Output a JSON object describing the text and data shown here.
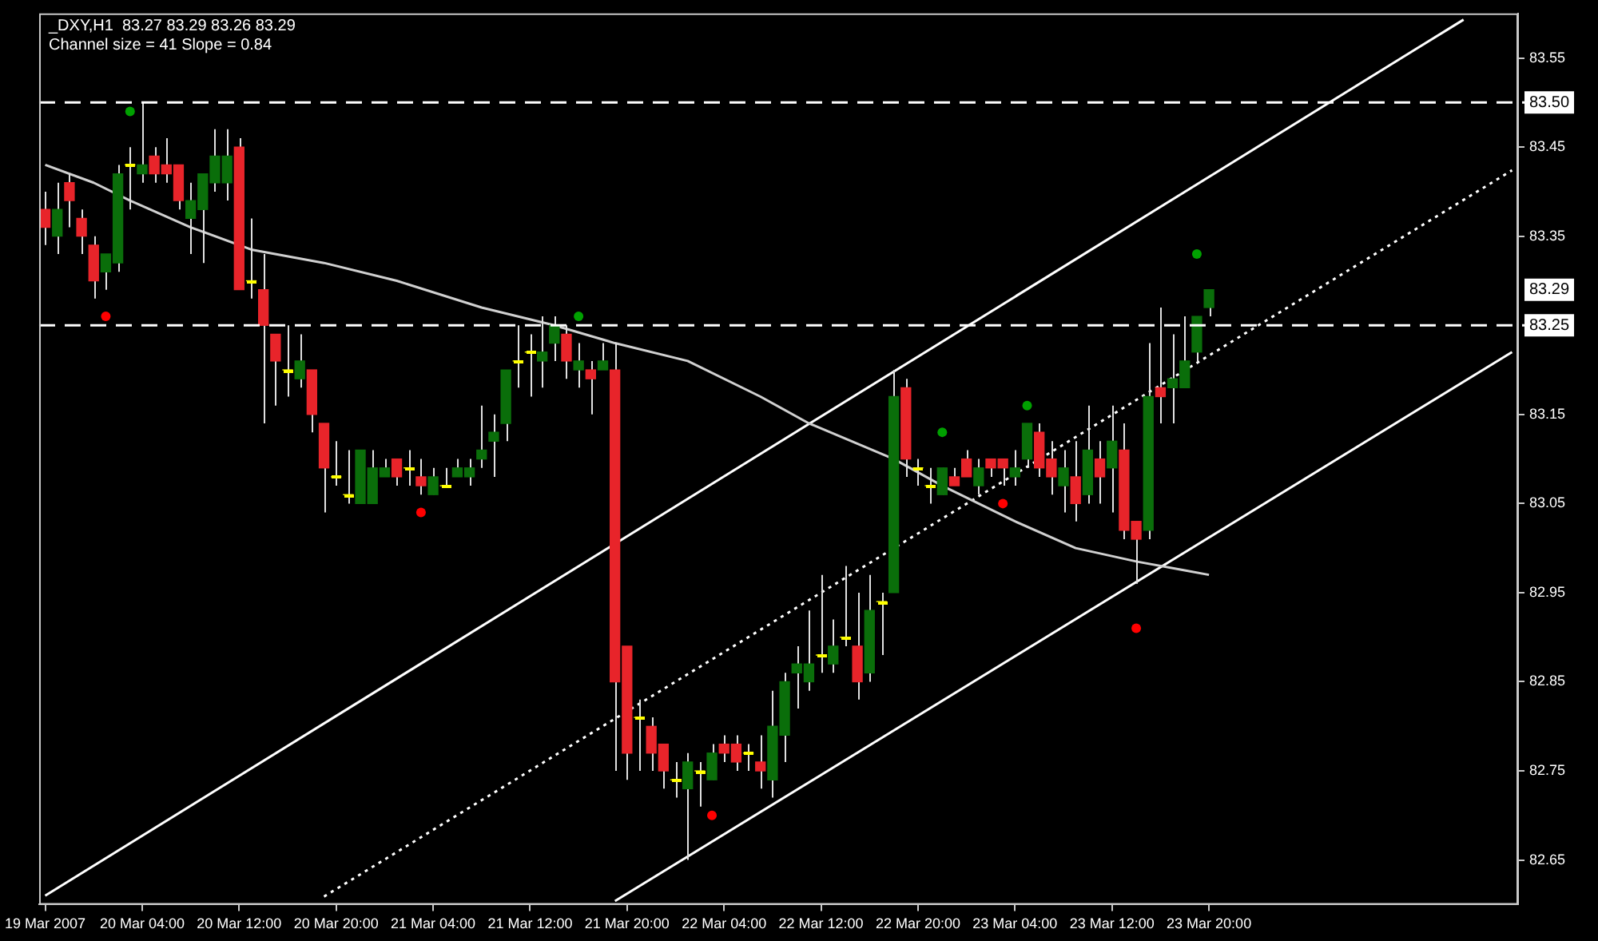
{
  "chart_data": {
    "type": "candlestick",
    "title": "_DXY,H1  83.27 83.29 83.26 83.29",
    "subtitle": "Channel size = 41 Slope = 0.84",
    "categories": [
      "19 Mar 2007",
      null,
      null,
      null,
      null,
      null,
      null,
      null,
      "20 Mar 04:00",
      null,
      null,
      null,
      null,
      null,
      null,
      null,
      "20 Mar 12:00",
      null,
      null,
      null,
      null,
      null,
      null,
      null,
      "20 Mar 20:00",
      null,
      null,
      null,
      null,
      null,
      null,
      null,
      "21 Mar 04:00",
      null,
      null,
      null,
      null,
      null,
      null,
      null,
      "21 Mar 12:00",
      null,
      null,
      null,
      null,
      null,
      null,
      null,
      "21 Mar 20:00",
      null,
      null,
      null,
      null,
      null,
      null,
      null,
      "22 Mar 04:00",
      null,
      null,
      null,
      null,
      null,
      null,
      null,
      "22 Mar 12:00",
      null,
      null,
      null,
      null,
      null,
      null,
      null,
      "22 Mar 20:00",
      null,
      null,
      null,
      null,
      null,
      null,
      null,
      "23 Mar 04:00",
      null,
      null,
      null,
      null,
      null,
      null,
      null,
      "23 Mar 12:00",
      null,
      null,
      null,
      null,
      null,
      null,
      null,
      "23 Mar 20:00",
      null,
      null,
      null,
      null,
      null,
      null,
      null,
      null,
      null,
      null,
      null,
      null,
      null,
      null,
      null,
      null,
      null,
      null,
      null,
      null,
      null,
      null,
      null,
      null,
      null
    ],
    "ylim": [
      82.6,
      83.6
    ],
    "yticks": [
      82.65,
      82.75,
      82.85,
      82.95,
      83.05,
      83.15,
      83.35,
      83.45,
      83.55
    ],
    "series": [
      {
        "ohlc": [
          [
            83.38,
            83.4,
            83.34,
            83.36
          ],
          [
            83.35,
            83.41,
            83.33,
            83.38
          ],
          [
            83.41,
            83.42,
            83.36,
            83.39
          ],
          [
            83.37,
            83.38,
            83.33,
            83.35
          ],
          [
            83.34,
            83.35,
            83.28,
            83.3
          ],
          [
            83.31,
            83.33,
            83.29,
            83.33
          ],
          [
            83.32,
            83.43,
            83.31,
            83.42
          ],
          [
            83.43,
            83.45,
            83.38,
            83.43
          ],
          [
            83.42,
            83.5,
            83.41,
            83.43
          ],
          [
            83.44,
            83.45,
            83.41,
            83.42
          ],
          [
            83.43,
            83.46,
            83.41,
            83.42
          ],
          [
            83.43,
            83.43,
            83.38,
            83.39
          ],
          [
            83.37,
            83.41,
            83.33,
            83.39
          ],
          [
            83.38,
            83.42,
            83.32,
            83.42
          ],
          [
            83.41,
            83.47,
            83.4,
            83.44
          ],
          [
            83.41,
            83.47,
            83.39,
            83.44
          ],
          [
            83.45,
            83.46,
            83.29,
            83.29
          ],
          [
            83.3,
            83.37,
            83.28,
            83.3
          ],
          [
            83.29,
            83.33,
            83.14,
            83.25
          ],
          [
            83.24,
            83.24,
            83.16,
            83.21
          ],
          [
            83.2,
            83.25,
            83.17,
            83.2
          ],
          [
            83.19,
            83.24,
            83.18,
            83.21
          ],
          [
            83.2,
            83.2,
            83.13,
            83.15
          ],
          [
            83.14,
            83.14,
            83.04,
            83.09
          ],
          [
            83.08,
            83.12,
            83.07,
            83.08
          ],
          [
            83.06,
            83.11,
            83.05,
            83.06
          ],
          [
            83.05,
            83.11,
            83.05,
            83.11
          ],
          [
            83.05,
            83.11,
            83.05,
            83.09
          ],
          [
            83.08,
            83.1,
            83.08,
            83.09
          ],
          [
            83.1,
            83.1,
            83.07,
            83.08
          ],
          [
            83.09,
            83.11,
            83.07,
            83.09
          ],
          [
            83.08,
            83.1,
            83.06,
            83.07
          ],
          [
            83.06,
            83.09,
            83.06,
            83.08
          ],
          [
            83.07,
            83.09,
            83.07,
            83.07
          ],
          [
            83.08,
            83.1,
            83.08,
            83.09
          ],
          [
            83.08,
            83.1,
            83.07,
            83.09
          ],
          [
            83.1,
            83.16,
            83.09,
            83.11
          ],
          [
            83.12,
            83.15,
            83.08,
            83.13
          ],
          [
            83.14,
            83.2,
            83.12,
            83.2
          ],
          [
            83.21,
            83.25,
            83.18,
            83.21
          ],
          [
            83.22,
            83.24,
            83.17,
            83.22
          ],
          [
            83.21,
            83.26,
            83.18,
            83.22
          ],
          [
            83.23,
            83.26,
            83.21,
            83.25
          ],
          [
            83.24,
            83.25,
            83.19,
            83.21
          ],
          [
            83.2,
            83.23,
            83.18,
            83.21
          ],
          [
            83.2,
            83.21,
            83.15,
            83.19
          ],
          [
            83.2,
            83.23,
            83.2,
            83.21
          ],
          [
            83.2,
            83.23,
            82.75,
            82.85
          ],
          [
            82.89,
            82.89,
            82.74,
            82.77
          ],
          [
            82.81,
            82.83,
            82.75,
            82.81
          ],
          [
            82.8,
            82.81,
            82.75,
            82.77
          ],
          [
            82.78,
            82.78,
            82.73,
            82.75
          ],
          [
            82.74,
            82.76,
            82.72,
            82.74
          ],
          [
            82.73,
            82.77,
            82.65,
            82.76
          ],
          [
            82.75,
            82.76,
            82.71,
            82.75
          ],
          [
            82.74,
            82.78,
            82.74,
            82.77
          ],
          [
            82.78,
            82.79,
            82.76,
            82.77
          ],
          [
            82.78,
            82.79,
            82.75,
            82.76
          ],
          [
            82.77,
            82.78,
            82.75,
            82.77
          ],
          [
            82.76,
            82.79,
            82.73,
            82.75
          ],
          [
            82.74,
            82.84,
            82.72,
            82.8
          ],
          [
            82.79,
            82.86,
            82.76,
            82.85
          ],
          [
            82.86,
            82.89,
            82.82,
            82.87
          ],
          [
            82.85,
            82.93,
            82.84,
            82.87
          ],
          [
            82.88,
            82.97,
            82.86,
            82.88
          ],
          [
            82.87,
            82.92,
            82.86,
            82.89
          ],
          [
            82.9,
            82.98,
            82.89,
            82.9
          ],
          [
            82.89,
            82.95,
            82.83,
            82.85
          ],
          [
            82.86,
            82.97,
            82.85,
            82.93
          ],
          [
            82.94,
            82.95,
            82.88,
            82.94
          ],
          [
            82.95,
            83.2,
            82.95,
            83.17
          ],
          [
            83.18,
            83.19,
            83.08,
            83.1
          ],
          [
            83.09,
            83.1,
            83.07,
            83.09
          ],
          [
            83.07,
            83.09,
            83.05,
            83.07
          ],
          [
            83.06,
            83.09,
            83.06,
            83.09
          ],
          [
            83.08,
            83.09,
            83.07,
            83.07
          ],
          [
            83.1,
            83.11,
            83.08,
            83.08
          ],
          [
            83.07,
            83.1,
            83.06,
            83.09
          ],
          [
            83.1,
            83.1,
            83.08,
            83.09
          ],
          [
            83.1,
            83.1,
            83.07,
            83.09
          ],
          [
            83.08,
            83.11,
            83.07,
            83.09
          ],
          [
            83.1,
            83.14,
            83.09,
            83.14
          ],
          [
            83.13,
            83.14,
            83.08,
            83.09
          ],
          [
            83.1,
            83.12,
            83.06,
            83.08
          ],
          [
            83.07,
            83.11,
            83.04,
            83.09
          ],
          [
            83.08,
            83.12,
            83.03,
            83.05
          ],
          [
            83.06,
            83.16,
            83.05,
            83.11
          ],
          [
            83.1,
            83.12,
            83.05,
            83.08
          ],
          [
            83.09,
            83.16,
            83.04,
            83.12
          ],
          [
            83.11,
            83.14,
            83.01,
            83.02
          ],
          [
            83.03,
            83.03,
            82.96,
            83.01
          ],
          [
            83.02,
            83.23,
            83.01,
            83.17
          ],
          [
            83.18,
            83.27,
            83.14,
            83.17
          ],
          [
            83.18,
            83.24,
            83.14,
            83.19
          ],
          [
            83.18,
            83.26,
            83.18,
            83.21
          ],
          [
            83.22,
            83.26,
            83.21,
            83.26
          ],
          [
            83.27,
            83.29,
            83.26,
            83.29
          ],
          null,
          null,
          null,
          null,
          null,
          null,
          null,
          null,
          null,
          null,
          null,
          null,
          null,
          null,
          null,
          null,
          null,
          null,
          null,
          null,
          null,
          null,
          null,
          null,
          null
        ],
        "colors": [
          "#e8242a",
          "#0a6e0a",
          "#e8242a",
          "#e8242a",
          "#e8242a",
          "#0a6e0a",
          "#0a6e0a",
          "#ffff00",
          "#0a6e0a",
          "#e8242a",
          "#e8242a",
          "#e8242a",
          "#0a6e0a",
          "#0a6e0a",
          "#0a6e0a",
          "#0a6e0a",
          "#e8242a",
          "#ffff00",
          "#e8242a",
          "#e8242a",
          "#ffff00",
          "#0a6e0a",
          "#e8242a",
          "#e8242a",
          "#ffff00",
          "#ffff00",
          "#0a6e0a",
          "#0a6e0a",
          "#0a6e0a",
          "#e8242a",
          "#ffff00",
          "#e8242a",
          "#0a6e0a",
          "#ffff00",
          "#0a6e0a",
          "#0a6e0a",
          "#0a6e0a",
          "#0a6e0a",
          "#0a6e0a",
          "#ffff00",
          "#ffff00",
          "#0a6e0a",
          "#0a6e0a",
          "#e8242a",
          "#0a6e0a",
          "#e8242a",
          "#0a6e0a",
          "#e8242a",
          "#e8242a",
          "#ffff00",
          "#e8242a",
          "#e8242a",
          "#ffff00",
          "#0a6e0a",
          "#ffff00",
          "#0a6e0a",
          "#e8242a",
          "#e8242a",
          "#ffff00",
          "#e8242a",
          "#0a6e0a",
          "#0a6e0a",
          "#0a6e0a",
          "#0a6e0a",
          "#ffff00",
          "#0a6e0a",
          "#ffff00",
          "#e8242a",
          "#0a6e0a",
          "#ffff00",
          "#0a6e0a",
          "#e8242a",
          "#ffff00",
          "#ffff00",
          "#0a6e0a",
          "#e8242a",
          "#e8242a",
          "#0a6e0a",
          "#e8242a",
          "#e8242a",
          "#0a6e0a",
          "#0a6e0a",
          "#e8242a",
          "#e8242a",
          "#0a6e0a",
          "#e8242a",
          "#0a6e0a",
          "#e8242a",
          "#0a6e0a",
          "#e8242a",
          "#e8242a",
          "#0a6e0a",
          "#e8242a",
          "#0a6e0a",
          "#0a6e0a",
          "#0a6e0a",
          "#0a6e0a",
          null,
          null,
          null,
          null,
          null,
          null,
          null,
          null,
          null,
          null,
          null,
          null,
          null,
          null,
          null,
          null,
          null,
          null,
          null,
          null,
          null,
          null,
          null,
          null,
          null
        ],
        "value_labels": [
          null,
          null,
          null,
          null,
          null,
          null,
          null,
          null,
          null,
          null,
          null,
          null,
          null,
          null,
          null,
          null,
          null,
          null,
          null,
          null,
          null,
          null,
          null,
          null,
          null,
          null,
          null,
          null,
          null,
          null,
          null,
          null,
          null,
          null,
          null,
          null,
          null,
          null,
          null,
          null,
          null,
          null,
          null,
          null,
          null,
          null,
          null,
          null,
          null,
          null,
          null,
          null,
          null,
          null,
          null,
          null,
          null,
          null,
          null,
          null,
          null,
          null,
          null,
          null,
          null,
          null,
          null,
          null,
          null,
          null,
          null,
          null,
          null,
          null,
          null,
          null,
          null,
          null,
          null,
          null,
          null,
          null,
          null,
          null,
          null,
          null,
          null,
          null,
          null,
          null,
          null,
          null,
          null,
          null,
          null,
          null,
          "83.29",
          null,
          null,
          null,
          null,
          null,
          null,
          null,
          null,
          null,
          null,
          null,
          null,
          null,
          null,
          null,
          null,
          null,
          null,
          null,
          null,
          null,
          null,
          null,
          null,
          null
        ]
      },
      {
        "type": "line",
        "color": "#d0d0d0",
        "line_style": "solid",
        "values": [
          83.43,
          null,
          null,
          null,
          83.41,
          null,
          null,
          83.39,
          null,
          null,
          null,
          null,
          83.36,
          null,
          null,
          null,
          null,
          83.335,
          null,
          null,
          null,
          null,
          null,
          83.32,
          null,
          null,
          null,
          null,
          null,
          83.3,
          null,
          null,
          null,
          null,
          null,
          null,
          83.27,
          null,
          null,
          null,
          null,
          null,
          83.25,
          null,
          null,
          null,
          null,
          83.23,
          null,
          null,
          null,
          null,
          null,
          83.21,
          null,
          null,
          null,
          null,
          null,
          83.17,
          null,
          null,
          null,
          83.14,
          null,
          null,
          null,
          null,
          null,
          null,
          83.1,
          null,
          null,
          null,
          83.07,
          null,
          null,
          null,
          null,
          null,
          83.03,
          null,
          null,
          null,
          null,
          83.0,
          null,
          null,
          null,
          null,
          82.985,
          null,
          null,
          null,
          82.975,
          null,
          82.97,
          null,
          null,
          null,
          null,
          null,
          null,
          null,
          null,
          null,
          null,
          null,
          null,
          null,
          null,
          null,
          null,
          null,
          null,
          null,
          null,
          null,
          null,
          null,
          null,
          null
        ]
      },
      {
        "type": "line",
        "color": "#ffffff",
        "line_style": "solid",
        "values": [
          82.61,
          null,
          null,
          null,
          null,
          null,
          null,
          null,
          null,
          null,
          null,
          null,
          null,
          null,
          null,
          null,
          null,
          null,
          null,
          null,
          null,
          null,
          null,
          null,
          null,
          null,
          null,
          null,
          null,
          null,
          null,
          null,
          null,
          null,
          null,
          null,
          null,
          null,
          null,
          null,
          null,
          null,
          null,
          null,
          null,
          null,
          null,
          null,
          null,
          null,
          null,
          null,
          null,
          null,
          null,
          null,
          null,
          null,
          null,
          null,
          null,
          null,
          null,
          null,
          null,
          null,
          null,
          null,
          null,
          null,
          null,
          null,
          null,
          null,
          null,
          null,
          null,
          null,
          null,
          null,
          null,
          null,
          null,
          null,
          null,
          null,
          null,
          null,
          null,
          null,
          null,
          null,
          null,
          null,
          null,
          null,
          null,
          null,
          null,
          null,
          null,
          null,
          null,
          null,
          null,
          null,
          null,
          null,
          null,
          null,
          null,
          null,
          null,
          null,
          null,
          null,
          null,
          83.593,
          null,
          null,
          null,
          null
        ]
      },
      {
        "type": "line",
        "color": "#ffffff",
        "line_style": "dotted",
        "values": [
          null,
          null,
          null,
          null,
          null,
          null,
          null,
          null,
          null,
          null,
          null,
          null,
          null,
          null,
          null,
          null,
          null,
          null,
          null,
          null,
          null,
          null,
          null,
          82.609,
          null,
          null,
          null,
          null,
          null,
          null,
          null,
          null,
          null,
          null,
          null,
          null,
          null,
          null,
          null,
          null,
          null,
          null,
          null,
          null,
          null,
          null,
          null,
          null,
          null,
          null,
          null,
          null,
          null,
          null,
          null,
          null,
          null,
          null,
          null,
          null,
          null,
          null,
          null,
          null,
          null,
          null,
          null,
          null,
          null,
          null,
          null,
          null,
          null,
          null,
          null,
          null,
          null,
          null,
          null,
          null,
          null,
          null,
          null,
          null,
          null,
          null,
          null,
          null,
          null,
          null,
          null,
          null,
          null,
          null,
          null,
          null,
          null,
          null,
          null,
          null,
          null,
          null,
          null,
          null,
          null,
          null,
          null,
          null,
          null,
          null,
          null,
          null,
          null,
          null,
          null,
          null,
          null,
          null,
          null,
          null,
          null,
          83.424
        ]
      },
      {
        "type": "line",
        "color": "#ffffff",
        "line_style": "solid",
        "values": [
          null,
          null,
          null,
          null,
          null,
          null,
          null,
          null,
          null,
          null,
          null,
          null,
          null,
          null,
          null,
          null,
          null,
          null,
          null,
          null,
          null,
          null,
          null,
          null,
          null,
          null,
          null,
          null,
          null,
          null,
          null,
          null,
          null,
          null,
          null,
          null,
          null,
          null,
          null,
          null,
          null,
          null,
          null,
          null,
          null,
          null,
          null,
          82.604,
          null,
          null,
          null,
          null,
          null,
          null,
          null,
          null,
          null,
          null,
          null,
          null,
          null,
          null,
          null,
          null,
          null,
          null,
          null,
          null,
          null,
          null,
          null,
          null,
          null,
          null,
          null,
          null,
          null,
          null,
          null,
          null,
          null,
          null,
          null,
          null,
          null,
          null,
          null,
          null,
          null,
          null,
          null,
          null,
          null,
          null,
          null,
          null,
          null,
          null,
          null,
          null,
          null,
          null,
          null,
          null,
          null,
          null,
          null,
          null,
          null,
          null,
          null,
          null,
          null,
          null,
          null,
          null,
          null,
          null,
          null,
          null,
          null,
          83.22
        ]
      },
      {
        "type": "scatter",
        "color": "#00a000",
        "marker": "circle",
        "values": [
          null,
          null,
          null,
          null,
          null,
          null,
          null,
          83.49,
          null,
          null,
          null,
          null,
          null,
          null,
          null,
          null,
          null,
          null,
          null,
          null,
          null,
          null,
          null,
          null,
          null,
          null,
          null,
          null,
          null,
          null,
          null,
          null,
          null,
          null,
          null,
          null,
          null,
          null,
          null,
          null,
          null,
          null,
          null,
          null,
          83.26,
          null,
          null,
          null,
          null,
          null,
          null,
          null,
          null,
          null,
          null,
          null,
          null,
          null,
          null,
          null,
          null,
          null,
          null,
          null,
          null,
          null,
          null,
          null,
          null,
          null,
          null,
          null,
          null,
          null,
          83.13,
          null,
          null,
          null,
          null,
          null,
          null,
          83.16,
          null,
          null,
          null,
          null,
          null,
          null,
          null,
          null,
          null,
          null,
          null,
          null,
          null,
          83.33,
          null,
          null,
          null,
          null,
          null,
          null,
          null,
          null,
          null,
          null,
          null,
          null,
          null,
          null,
          null,
          null,
          null,
          null,
          null,
          null,
          null,
          null,
          null,
          null,
          null,
          null
        ]
      },
      {
        "type": "scatter",
        "color": "#ff0000",
        "marker": "circle",
        "values": [
          null,
          null,
          null,
          null,
          null,
          83.26,
          null,
          null,
          null,
          null,
          null,
          null,
          null,
          null,
          null,
          null,
          null,
          null,
          null,
          null,
          null,
          null,
          null,
          null,
          null,
          null,
          null,
          null,
          null,
          null,
          null,
          83.04,
          null,
          null,
          null,
          null,
          null,
          null,
          null,
          null,
          null,
          null,
          null,
          null,
          null,
          null,
          null,
          null,
          null,
          null,
          null,
          null,
          null,
          null,
          null,
          82.7,
          null,
          null,
          null,
          null,
          null,
          null,
          null,
          null,
          null,
          null,
          null,
          null,
          null,
          null,
          null,
          null,
          null,
          null,
          null,
          null,
          null,
          null,
          null,
          83.05,
          null,
          null,
          null,
          null,
          null,
          null,
          null,
          null,
          null,
          null,
          82.91,
          null,
          null,
          null,
          null,
          null,
          null,
          null,
          null,
          null,
          null,
          null,
          null,
          null,
          null,
          null,
          null,
          null,
          null,
          null,
          null,
          null,
          null,
          null,
          null,
          null,
          null,
          null,
          null,
          null,
          null,
          null
        ]
      }
    ],
    "ref_lines": [
      {
        "axis": "y",
        "value": 83.5,
        "label": "83.50",
        "color": "#ffffff",
        "line_style": "dashed"
      },
      {
        "axis": "y",
        "value": 83.25,
        "label": "83.25",
        "color": "#ffffff",
        "line_style": "dashed"
      }
    ]
  }
}
